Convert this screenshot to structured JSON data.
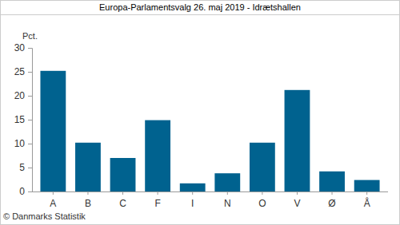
{
  "chart_data": {
    "type": "bar",
    "title": "Europa-Parlamentsvalg 26. maj 2019 - Idrætshallen",
    "ylabel": "Pct.",
    "annotations": [
      "© Danmarks Statistik"
    ],
    "categories": [
      "A",
      "B",
      "C",
      "F",
      "I",
      "N",
      "O",
      "V",
      "Ø",
      "Å"
    ],
    "values": [
      25.2,
      10.2,
      7.0,
      14.9,
      1.7,
      3.8,
      10.2,
      21.2,
      4.2,
      2.4
    ],
    "color": "#00628f",
    "ylim": [
      0,
      30
    ],
    "yticks": [
      0,
      5,
      10,
      15,
      20,
      25,
      30
    ],
    "grid": false
  }
}
